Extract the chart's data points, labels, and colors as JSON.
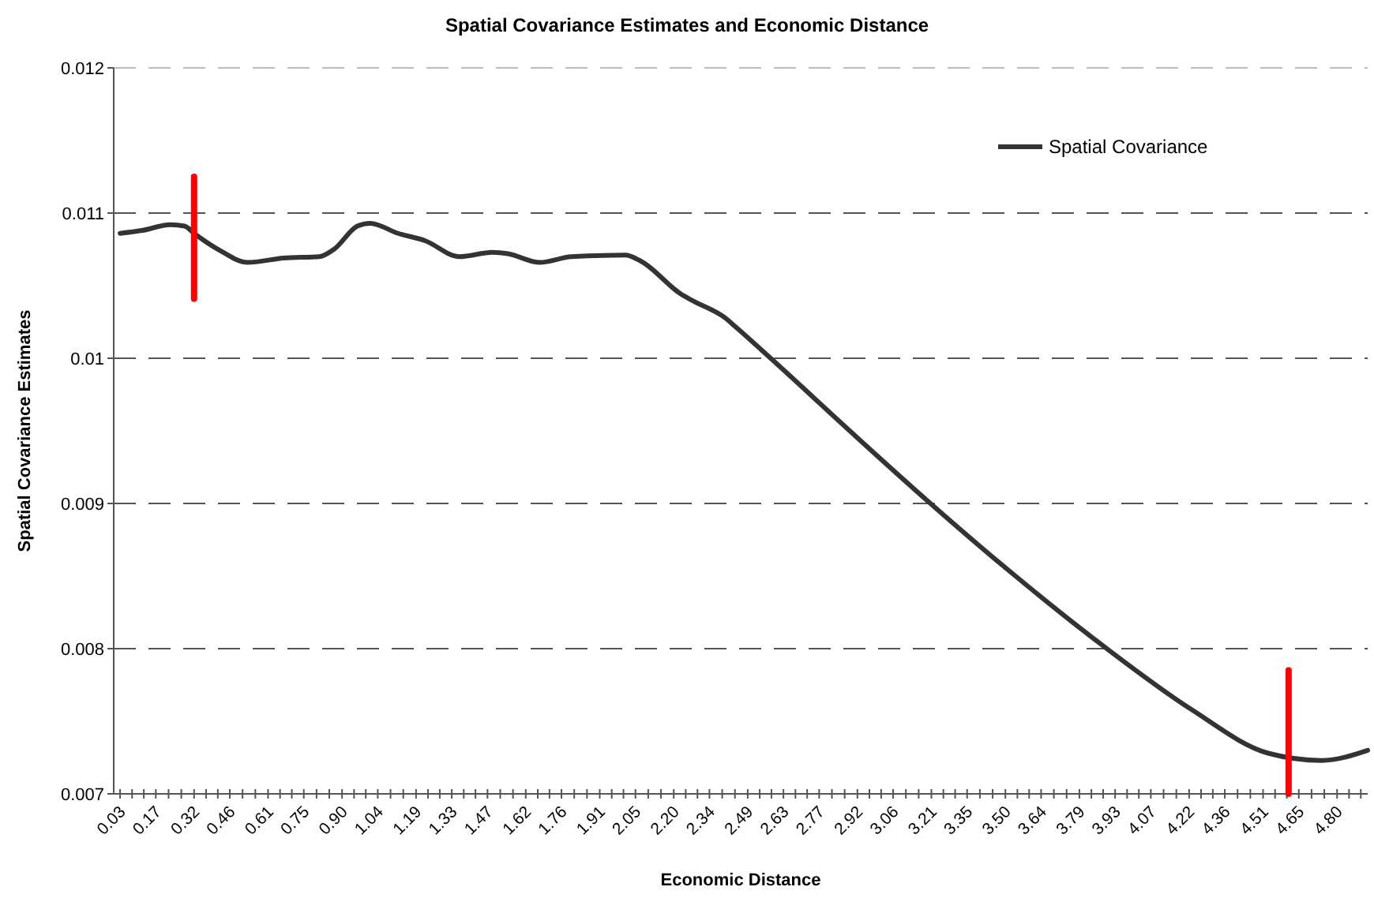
{
  "chart_data": {
    "type": "line",
    "title": "Spatial Covariance Estimates and Economic Distance",
    "xlabel": "Economic Distance",
    "ylabel": "Spatial Covariance Estimates",
    "xlim": [
      0.005,
      4.92
    ],
    "ylim": [
      0.007,
      0.012
    ],
    "yticks": [
      0.007,
      0.008,
      0.009,
      0.01,
      0.011,
      0.012
    ],
    "xticks": [
      0.03,
      {
        "value": 0.077,
        "label": null
      },
      {
        "value": 0.123,
        "label": null
      },
      0.17,
      {
        "value": 0.22,
        "label": null
      },
      {
        "value": 0.27,
        "label": null
      },
      {
        "value": 0.32,
        "label": "0.32"
      },
      {
        "value": 0.367,
        "label": null
      },
      {
        "value": 0.413,
        "label": null
      },
      {
        "value": 0.46,
        "label": "0.46"
      },
      {
        "value": 0.51,
        "label": null
      },
      {
        "value": 0.56,
        "label": null
      },
      {
        "value": 0.61,
        "label": "0.61"
      },
      {
        "value": 0.657,
        "label": null
      },
      {
        "value": 0.703,
        "label": null
      },
      {
        "value": 0.75,
        "label": "0.75"
      },
      {
        "value": 0.8,
        "label": null
      },
      {
        "value": 0.85,
        "label": null
      },
      {
        "value": 0.9,
        "label": "0.90"
      },
      {
        "value": 0.947,
        "label": null
      },
      {
        "value": 0.993,
        "label": null
      },
      {
        "value": 1.04,
        "label": "1.04"
      },
      {
        "value": 1.09,
        "label": null
      },
      {
        "value": 1.14,
        "label": null
      },
      {
        "value": 1.19,
        "label": "1.19"
      },
      {
        "value": 1.237,
        "label": null
      },
      {
        "value": 1.283,
        "label": null
      },
      {
        "value": 1.33,
        "label": "1.33"
      },
      {
        "value": 1.377,
        "label": null
      },
      {
        "value": 1.423,
        "label": null
      },
      {
        "value": 1.47,
        "label": "1.47"
      },
      {
        "value": 1.52,
        "label": null
      },
      {
        "value": 1.57,
        "label": null
      },
      {
        "value": 1.62,
        "label": "1.62"
      },
      {
        "value": 1.667,
        "label": null
      },
      {
        "value": 1.713,
        "label": null
      },
      {
        "value": 1.76,
        "label": "1.76"
      },
      {
        "value": 1.81,
        "label": null
      },
      {
        "value": 1.86,
        "label": null
      },
      {
        "value": 1.91,
        "label": "1.91"
      },
      {
        "value": 1.957,
        "label": null
      },
      {
        "value": 2.003,
        "label": null
      },
      {
        "value": 2.05,
        "label": "2.05"
      },
      {
        "value": 2.1,
        "label": null
      },
      {
        "value": 2.15,
        "label": null
      },
      {
        "value": 2.2,
        "label": "2.20"
      },
      {
        "value": 2.247,
        "label": null
      },
      {
        "value": 2.293,
        "label": null
      },
      {
        "value": 2.34,
        "label": "2.34"
      },
      {
        "value": 2.39,
        "label": null
      },
      {
        "value": 2.44,
        "label": null
      },
      {
        "value": 2.49,
        "label": "2.49"
      },
      {
        "value": 2.537,
        "label": null
      },
      {
        "value": 2.583,
        "label": null
      },
      {
        "value": 2.63,
        "label": "2.63"
      },
      {
        "value": 2.677,
        "label": null
      },
      {
        "value": 2.723,
        "label": null
      },
      {
        "value": 2.77,
        "label": "2.77"
      },
      {
        "value": 2.82,
        "label": null
      },
      {
        "value": 2.87,
        "label": null
      },
      {
        "value": 2.92,
        "label": "2.92"
      },
      {
        "value": 2.967,
        "label": null
      },
      {
        "value": 3.013,
        "label": null
      },
      {
        "value": 3.06,
        "label": "3.06"
      },
      {
        "value": 3.11,
        "label": null
      },
      {
        "value": 3.16,
        "label": null
      },
      {
        "value": 3.21,
        "label": "3.21"
      },
      {
        "value": 3.257,
        "label": null
      },
      {
        "value": 3.303,
        "label": null
      },
      {
        "value": 3.35,
        "label": "3.35"
      },
      {
        "value": 3.4,
        "label": null
      },
      {
        "value": 3.45,
        "label": null
      },
      {
        "value": 3.5,
        "label": "3.50"
      },
      {
        "value": 3.547,
        "label": null
      },
      {
        "value": 3.593,
        "label": null
      },
      {
        "value": 3.64,
        "label": "3.64"
      },
      {
        "value": 3.69,
        "label": null
      },
      {
        "value": 3.74,
        "label": null
      },
      {
        "value": 3.79,
        "label": "3.79"
      },
      {
        "value": 3.837,
        "label": null
      },
      {
        "value": 3.883,
        "label": null
      },
      {
        "value": 3.93,
        "label": "3.93"
      },
      {
        "value": 3.977,
        "label": null
      },
      {
        "value": 4.023,
        "label": null
      },
      {
        "value": 4.07,
        "label": "4.07"
      },
      {
        "value": 4.12,
        "label": null
      },
      {
        "value": 4.17,
        "label": null
      },
      {
        "value": 4.22,
        "label": "4.22"
      },
      {
        "value": 4.267,
        "label": null
      },
      {
        "value": 4.313,
        "label": null
      },
      {
        "value": 4.36,
        "label": "4.36"
      },
      {
        "value": 4.41,
        "label": null
      },
      {
        "value": 4.46,
        "label": null
      },
      {
        "value": 4.51,
        "label": "4.51"
      },
      {
        "value": 4.557,
        "label": null
      },
      {
        "value": 4.603,
        "label": null
      },
      {
        "value": 4.65,
        "label": "4.65"
      },
      {
        "value": 4.7,
        "label": null
      },
      {
        "value": 4.75,
        "label": null
      },
      {
        "value": 4.8,
        "label": "4.80"
      },
      {
        "value": 4.847,
        "label": null
      },
      {
        "value": 4.893,
        "label": null
      }
    ],
    "grid": "y",
    "line_style": "dashed",
    "legend": "top right",
    "marker": "none",
    "series": [
      {
        "name": "Spatial Covariance",
        "color": "#333333",
        "line_style": "solid",
        "x": [
          0.03,
          0.116,
          0.227,
          0.283,
          0.32,
          0.424,
          0.529,
          0.671,
          0.812,
          0.868,
          0.96,
          1.01,
          1.12,
          1.225,
          1.36,
          1.49,
          1.55,
          1.675,
          1.8,
          2.01,
          2.07,
          2.23,
          2.27,
          2.4,
          2.44,
          2.58,
          2.89,
          3.2,
          3.505,
          3.89,
          4.23,
          4.53,
          4.74,
          4.92
        ],
        "values": [
          0.01086,
          0.01088,
          0.01092,
          0.01091,
          0.01086,
          0.01074,
          0.01066,
          0.01069,
          0.0107,
          0.01075,
          0.01091,
          0.01093,
          0.01086,
          0.01081,
          0.0107,
          0.01073,
          0.01072,
          0.01066,
          0.0107,
          0.01071,
          0.01067,
          0.01044,
          0.0104,
          0.01028,
          0.01022,
          0.01,
          0.0095,
          0.00901,
          0.00855,
          0.00801,
          0.00758,
          0.00728,
          0.00723,
          0.0073
        ]
      },
      {
        "color": "#ff0000",
        "line_style": "solid",
        "x": [
          0.32,
          0.32
        ],
        "values": [
          0.01041,
          0.01125
        ]
      },
      {
        "color": "#ff0000",
        "line_style": "solid",
        "x": [
          4.61,
          4.61
        ],
        "values": [
          0.007,
          0.00785
        ]
      }
    ]
  }
}
